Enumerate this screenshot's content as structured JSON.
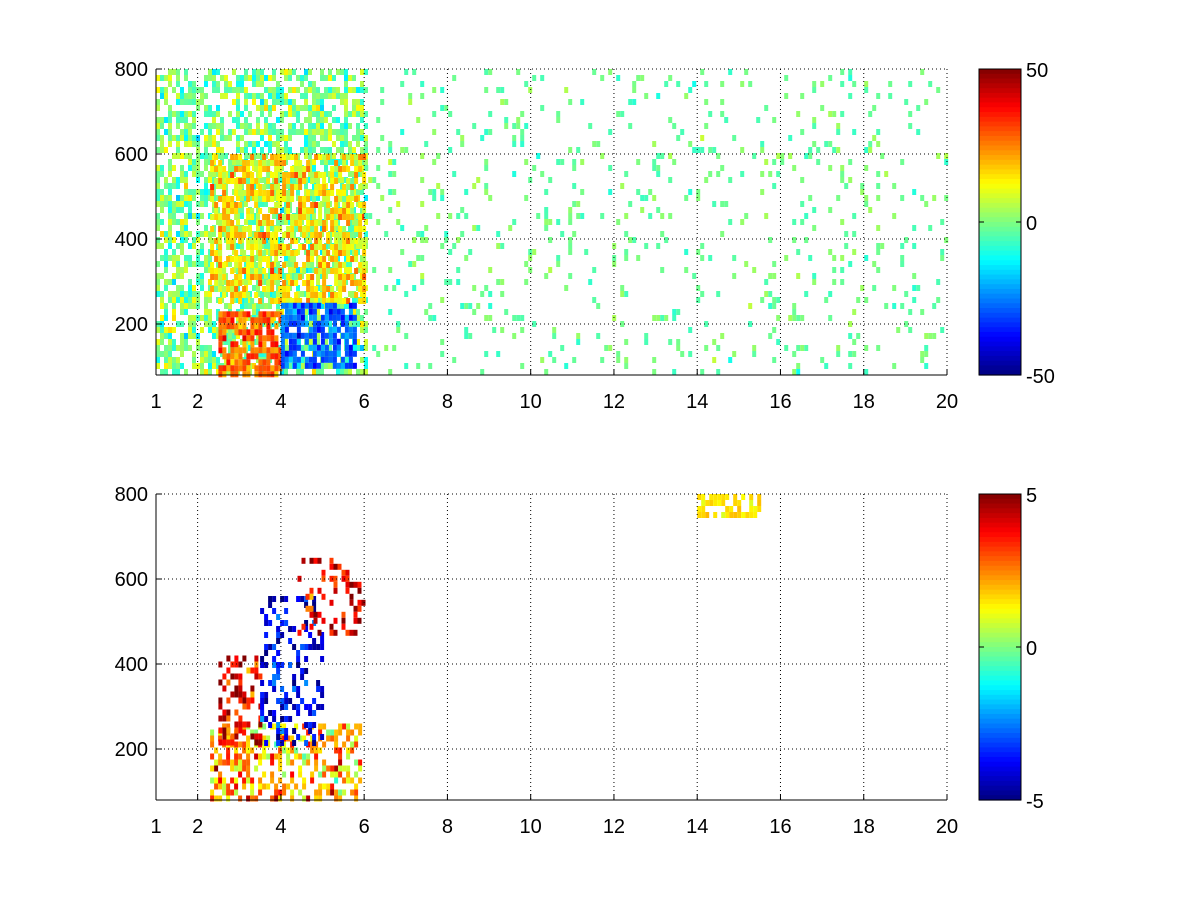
{
  "chart_data": [
    {
      "type": "heatmap",
      "title": "",
      "xlabel": "",
      "ylabel": "",
      "xlim": [
        1,
        20
      ],
      "ylim": [
        80,
        800
      ],
      "x_ticks": [
        1,
        2,
        4,
        6,
        8,
        10,
        12,
        14,
        16,
        18,
        20
      ],
      "y_ticks": [
        200,
        400,
        600,
        800
      ],
      "grid": true,
      "colormap": "jet",
      "colorbar": {
        "range": [
          -50,
          50
        ],
        "ticks": [
          50,
          0,
          -50
        ]
      },
      "regions": [
        {
          "x": [
            1.0,
            6.0
          ],
          "y": [
            80,
            800
          ],
          "value": 0,
          "spread": 12,
          "density": 0.62
        },
        {
          "x": [
            2.3,
            6.0
          ],
          "y": [
            250,
            600
          ],
          "value": 15,
          "spread": 12,
          "density": 0.6
        },
        {
          "x": [
            2.5,
            4.0
          ],
          "y": [
            80,
            230
          ],
          "value": 28,
          "spread": 10,
          "density": 0.75
        },
        {
          "x": [
            4.0,
            5.8
          ],
          "y": [
            100,
            250
          ],
          "value": -28,
          "spread": 10,
          "density": 0.72
        },
        {
          "x": [
            6.0,
            20.0
          ],
          "y": [
            80,
            800
          ],
          "value": -2,
          "spread": 6,
          "density": 0.09
        }
      ]
    },
    {
      "type": "heatmap",
      "title": "",
      "xlabel": "",
      "ylabel": "",
      "xlim": [
        1,
        20
      ],
      "ylim": [
        80,
        800
      ],
      "x_ticks": [
        1,
        2,
        4,
        6,
        8,
        10,
        12,
        14,
        16,
        18,
        20
      ],
      "y_ticks": [
        200,
        400,
        600,
        800
      ],
      "grid": true,
      "colormap": "jet",
      "colorbar": {
        "range": [
          -5,
          5
        ],
        "ticks": [
          5,
          0,
          -5
        ]
      },
      "regions": [
        {
          "x": [
            2.3,
            5.9
          ],
          "y": [
            80,
            260
          ],
          "value": 2,
          "spread": 2,
          "density": 0.5
        },
        {
          "x": [
            2.5,
            3.5
          ],
          "y": [
            220,
            420
          ],
          "value": 4,
          "spread": 1.5,
          "density": 0.4
        },
        {
          "x": [
            3.5,
            5.0
          ],
          "y": [
            220,
            560
          ],
          "value": -4,
          "spread": 1.5,
          "density": 0.35
        },
        {
          "x": [
            4.4,
            6.0
          ],
          "y": [
            480,
            650
          ],
          "value": 4,
          "spread": 1.5,
          "density": 0.3
        },
        {
          "x": [
            14.0,
            15.5
          ],
          "y": [
            750,
            800
          ],
          "value": 1.5,
          "spread": 0.5,
          "density": 0.5
        }
      ]
    }
  ]
}
